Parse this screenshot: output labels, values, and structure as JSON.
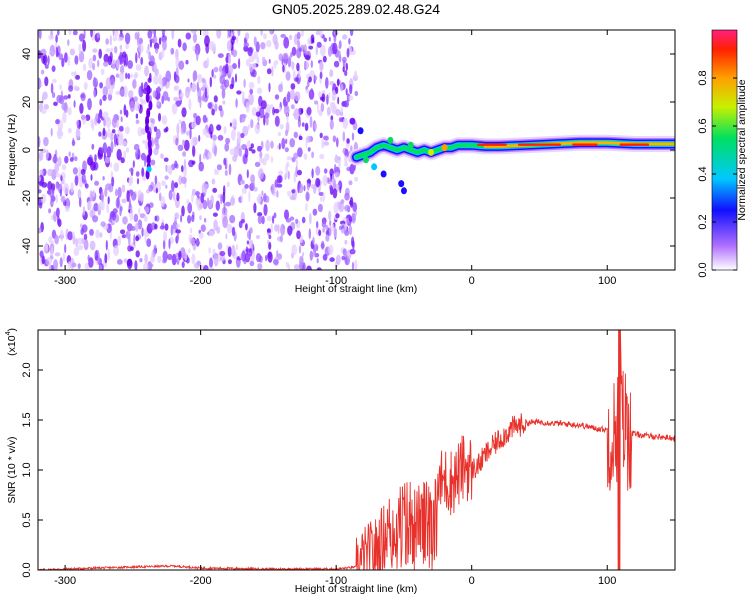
{
  "title": "GN05.2025.289.02.48.G24",
  "chart_data": [
    {
      "type": "heatmap",
      "xlabel": "Height of straight line (km)",
      "ylabel": "Frequency (Hz)",
      "xlim": [
        -320,
        150
      ],
      "ylim": [
        -50,
        50
      ],
      "xticks": [
        -300,
        -200,
        -100,
        0,
        100
      ],
      "yticks": [
        -40,
        -20,
        0,
        20,
        40
      ],
      "noise_region_x": [
        -320,
        -85
      ],
      "ridge": {
        "x": [
          -85,
          -80,
          -75,
          -70,
          -65,
          -60,
          -55,
          -50,
          -45,
          -40,
          -35,
          -30,
          -25,
          -20,
          -15,
          -10,
          -5,
          0,
          10,
          20,
          40,
          60,
          80,
          100,
          120,
          150
        ],
        "frequency": [
          -3,
          -2,
          -1,
          1,
          2,
          1,
          0,
          1,
          0,
          -1,
          0,
          -1,
          0,
          1,
          1,
          2,
          2,
          2,
          1.5,
          1.5,
          2,
          2.5,
          3,
          3,
          2.5,
          2.5
        ]
      },
      "colorbar": {
        "label": "Normalized spectral amplitude",
        "range": [
          0,
          1
        ],
        "ticks": [
          0.0,
          0.2,
          0.4,
          0.6,
          0.8
        ]
      }
    },
    {
      "type": "line",
      "xlabel": "Height of straight line (km)",
      "ylabel": "SNR (10 * v/v)",
      "yscale_label": "(x10",
      "yscale_exp": "4",
      "xlim": [
        -320,
        150
      ],
      "ylim": [
        0,
        2.4
      ],
      "xticks": [
        -300,
        -200,
        -100,
        0,
        100
      ],
      "yticks": [
        0.0,
        0.5,
        1.0,
        1.5,
        2.0
      ],
      "color": "#e8312b",
      "series": [
        {
          "x": [
            -320,
            -300,
            -250,
            -220,
            -200,
            -150,
            -100,
            -85,
            -70,
            -60,
            -55,
            -50,
            -45,
            -40,
            -35,
            -30,
            -25,
            -20,
            -15,
            -10,
            -5,
            0,
            5,
            10,
            20,
            30,
            40,
            50,
            60,
            70,
            80,
            90,
            100,
            105,
            110,
            115,
            120,
            130,
            140,
            150
          ],
          "values": [
            0.0,
            0.01,
            0.03,
            0.04,
            0.02,
            0.01,
            0.01,
            0.03,
            0.2,
            0.45,
            0.5,
            0.55,
            0.6,
            0.5,
            0.55,
            0.7,
            0.85,
            0.9,
            0.88,
            0.95,
            1.05,
            1.0,
            1.05,
            1.15,
            1.3,
            1.42,
            1.47,
            1.48,
            1.47,
            1.46,
            1.45,
            1.42,
            1.4,
            1.35,
            1.6,
            1.38,
            1.36,
            1.34,
            1.33,
            1.32
          ]
        }
      ]
    }
  ]
}
